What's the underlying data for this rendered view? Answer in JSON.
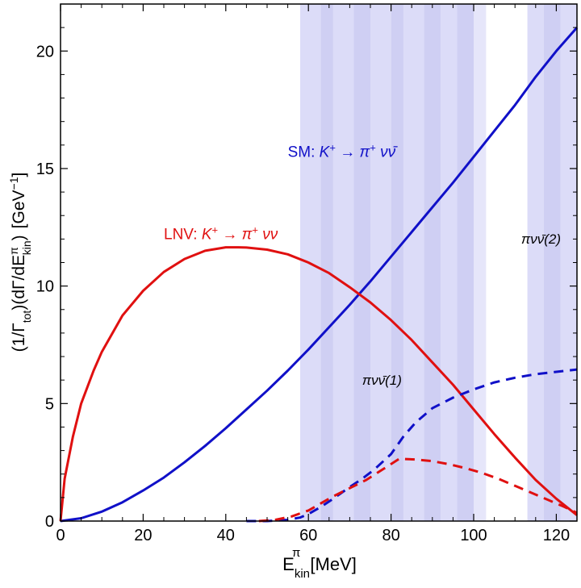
{
  "chart_data": {
    "type": "line",
    "xlabel": {
      "main": "E",
      "sup": "π",
      "sub": "kin",
      "unit": "[MeV]"
    },
    "ylabel": {
      "prefix": "(1/Γ",
      "sub1": "tot",
      "mid": ")(dΓ/dE",
      "sup": "π",
      "sub2": "kin",
      "suffix": ")",
      "unit_open": "[GeV",
      "unit_sup": "−1",
      "unit_close": "]"
    },
    "xlim": [
      0,
      125
    ],
    "ylim": [
      0,
      22
    ],
    "xticks": [
      "0",
      "20",
      "40",
      "60",
      "80",
      "100",
      "120"
    ],
    "yticks": [
      "0",
      "5",
      "10",
      "15",
      "20"
    ],
    "grid": false,
    "bands": [
      {
        "name": "πνν̄(1)",
        "x_range": [
          58,
          103
        ],
        "stripes": [
          [
            58,
            63,
            "a"
          ],
          [
            63,
            66,
            "b"
          ],
          [
            66,
            71,
            "a"
          ],
          [
            71,
            75,
            "b"
          ],
          [
            75,
            80,
            "a"
          ],
          [
            80,
            83,
            "b"
          ],
          [
            83,
            88,
            "a"
          ],
          [
            88,
            92,
            "b"
          ],
          [
            92,
            96,
            "a"
          ],
          [
            96,
            100,
            "b"
          ],
          [
            100,
            103,
            "c"
          ]
        ]
      },
      {
        "name": "πνν̄(2)",
        "x_range": [
          113,
          125
        ],
        "stripes": [
          [
            113,
            117,
            "a"
          ],
          [
            117,
            121,
            "b"
          ],
          [
            121,
            125,
            "a"
          ]
        ]
      }
    ],
    "band_colors": {
      "a": "#dcdcf8",
      "b": "#cfcff3",
      "c": "#e6e6fa"
    },
    "series": [
      {
        "id": "sm",
        "style": "solid",
        "color": "#1010c8",
        "x": [
          0,
          5,
          10,
          15,
          20,
          25,
          30,
          35,
          40,
          45,
          50,
          55,
          60,
          65,
          70,
          75,
          80,
          85,
          90,
          95,
          100,
          105,
          110,
          115,
          120,
          125
        ],
        "y": [
          0,
          0.12,
          0.4,
          0.8,
          1.3,
          1.85,
          2.5,
          3.2,
          3.95,
          4.75,
          5.55,
          6.4,
          7.3,
          8.25,
          9.2,
          10.2,
          11.25,
          12.3,
          13.35,
          14.4,
          15.5,
          16.6,
          17.7,
          18.9,
          20.0,
          21.0
        ]
      },
      {
        "id": "lnv",
        "style": "solid",
        "color": "#e01010",
        "x": [
          0,
          1,
          3,
          5,
          8,
          10,
          15,
          20,
          25,
          30,
          35,
          40,
          43,
          45,
          50,
          55,
          60,
          65,
          70,
          75,
          80,
          85,
          90,
          95,
          100,
          105,
          110,
          115,
          120,
          125
        ],
        "y": [
          0,
          1.8,
          3.6,
          5.0,
          6.4,
          7.2,
          8.75,
          9.8,
          10.6,
          11.15,
          11.5,
          11.65,
          11.65,
          11.64,
          11.55,
          11.35,
          11.0,
          10.55,
          9.95,
          9.3,
          8.55,
          7.7,
          6.75,
          5.8,
          4.75,
          3.7,
          2.7,
          1.75,
          0.95,
          0.25
        ]
      },
      {
        "id": "sm_dashed",
        "style": "dashed",
        "color": "#1010c8",
        "x": [
          45,
          50,
          55,
          58,
          60,
          63,
          66,
          70,
          73,
          76,
          80,
          83,
          86,
          90,
          95,
          100,
          105,
          110,
          115,
          120,
          125
        ],
        "y": [
          0,
          0,
          0.05,
          0.15,
          0.3,
          0.6,
          0.95,
          1.45,
          1.8,
          2.2,
          2.85,
          3.6,
          4.2,
          4.8,
          5.25,
          5.6,
          5.9,
          6.1,
          6.25,
          6.35,
          6.45
        ]
      },
      {
        "id": "lnv_dashed",
        "style": "dashed",
        "color": "#e01010",
        "x": [
          48,
          52,
          56,
          60,
          63,
          66,
          70,
          74,
          78,
          82,
          86,
          90,
          94,
          98,
          102,
          106,
          110,
          114,
          118,
          122,
          125
        ],
        "y": [
          0,
          0.05,
          0.2,
          0.45,
          0.75,
          1.05,
          1.4,
          1.75,
          2.2,
          2.65,
          2.62,
          2.55,
          2.42,
          2.25,
          2.05,
          1.8,
          1.5,
          1.2,
          0.9,
          0.6,
          0.35
        ]
      }
    ],
    "annotations": [
      {
        "id": "sm-label",
        "color": "#1010c8",
        "parts": [
          "SM: ",
          "K",
          "+",
          " → π",
          "+",
          " νν̄"
        ],
        "x": 55,
        "y": 15.5
      },
      {
        "id": "lnv-label",
        "color": "#e01010",
        "parts": [
          "LNV: ",
          "K",
          "+",
          " → π",
          "+",
          " νν"
        ],
        "x": 25,
        "y": 12.0
      },
      {
        "id": "band1-label",
        "color": "#000000",
        "text": "πνν̄(1)",
        "x": 73,
        "y": 5.8
      },
      {
        "id": "band2-label",
        "color": "#000000",
        "text": "πνν̄(2)",
        "x": 111.5,
        "y": 11.8
      }
    ]
  }
}
